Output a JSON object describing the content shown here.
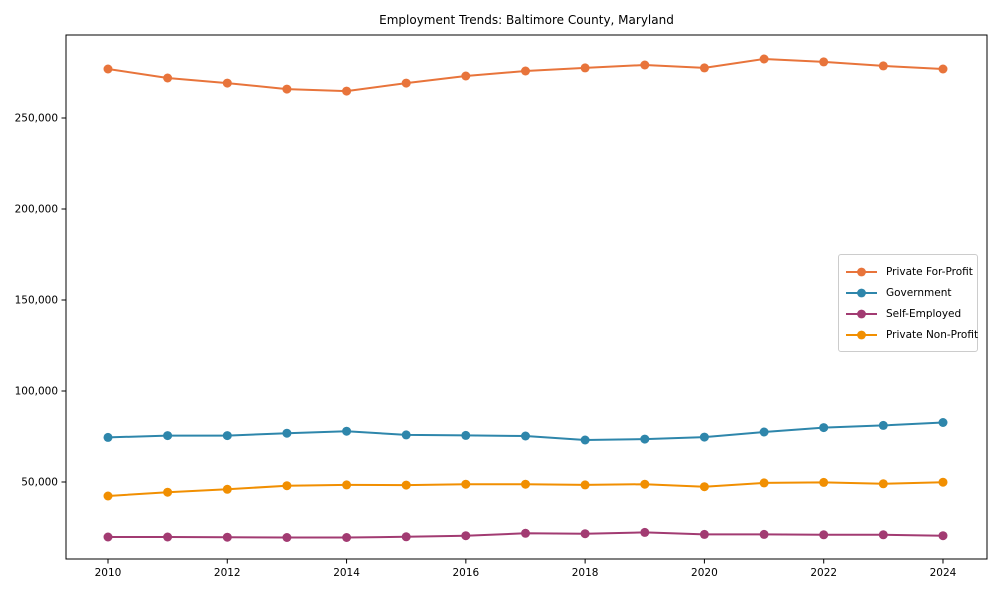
{
  "figure": {
    "background": "#ffffff"
  },
  "chart_data": {
    "type": "line",
    "title": "Employment Trends: Baltimore County, Maryland",
    "xlabel": "",
    "ylabel": "",
    "grid": false,
    "legend_position": "center right",
    "x": [
      2010,
      2011,
      2012,
      2013,
      2014,
      2015,
      2016,
      2017,
      2018,
      2019,
      2020,
      2021,
      2022,
      2023,
      2024
    ],
    "x_ticks": [
      2010,
      2012,
      2014,
      2016,
      2018,
      2020,
      2022,
      2024
    ],
    "x_tick_labels": [
      "2010",
      "2012",
      "2014",
      "2016",
      "2018",
      "2020",
      "2022",
      "2024"
    ],
    "y_ticks": [
      50000,
      100000,
      150000,
      200000,
      250000
    ],
    "y_tick_labels": [
      "50,000",
      "100,000",
      "150,000",
      "200,000",
      "250,000"
    ],
    "xlim": [
      2009.296,
      2024.738
    ],
    "ylim": [
      7700,
      295600
    ],
    "series": [
      {
        "name": "Private For-Profit",
        "color": "#E8743B",
        "values": [
          276900,
          272000,
          269200,
          265900,
          264800,
          269200,
          273100,
          275800,
          277500,
          279100,
          277500,
          282400,
          280800,
          278600,
          276900
        ]
      },
      {
        "name": "Government",
        "color": "#2E86AB",
        "values": [
          74500,
          75500,
          75500,
          76800,
          77900,
          75900,
          75600,
          75300,
          73100,
          73600,
          74700,
          77500,
          79900,
          81100,
          82700
        ]
      },
      {
        "name": "Self-Employed",
        "color": "#A23B72",
        "values": [
          19800,
          19800,
          19700,
          19500,
          19500,
          19900,
          20500,
          21800,
          21600,
          22300,
          21200,
          21200,
          21000,
          21000,
          20500
        ]
      },
      {
        "name": "Private Non-Profit",
        "color": "#F18F01",
        "values": [
          42300,
          44400,
          46000,
          48000,
          48400,
          48300,
          48800,
          48800,
          48400,
          48800,
          47400,
          49500,
          49800,
          49000,
          49900
        ]
      }
    ]
  }
}
